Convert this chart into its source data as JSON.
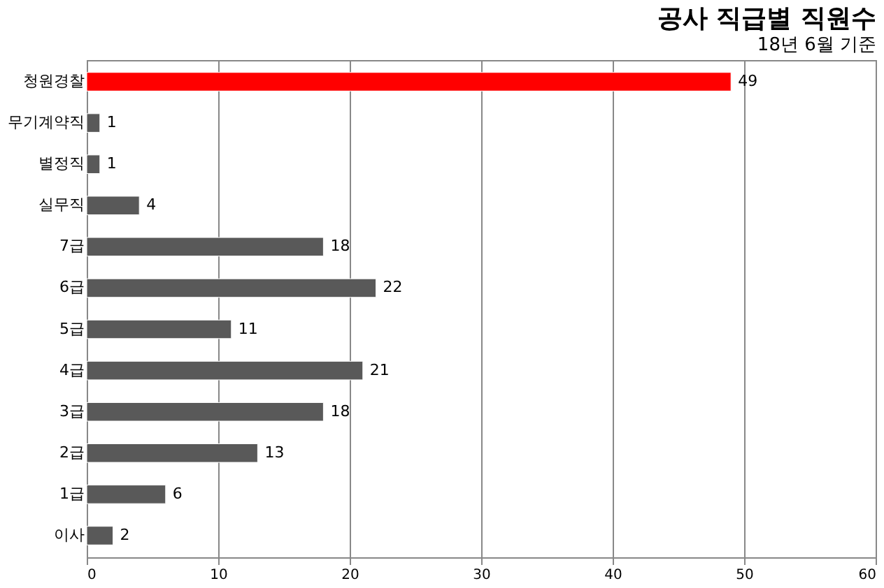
{
  "chart_data": {
    "type": "bar",
    "orientation": "horizontal",
    "title": "공사 직급별 직원수",
    "subtitle": "18년 6월 기준",
    "categories": [
      "청원경찰",
      "무기계약직",
      "별정직",
      "실무직",
      "7급",
      "6급",
      "5급",
      "4급",
      "3급",
      "2급",
      "1급",
      "이사"
    ],
    "values": [
      49,
      1,
      1,
      4,
      18,
      22,
      11,
      21,
      18,
      13,
      6,
      2
    ],
    "colors": [
      "#ff0000",
      "#595959",
      "#595959",
      "#595959",
      "#595959",
      "#595959",
      "#595959",
      "#595959",
      "#595959",
      "#595959",
      "#595959",
      "#595959"
    ],
    "xlim": [
      0,
      60
    ],
    "xticks": [
      0,
      10,
      20,
      30,
      40,
      50,
      60
    ],
    "grid": "x",
    "data_labels": true
  }
}
